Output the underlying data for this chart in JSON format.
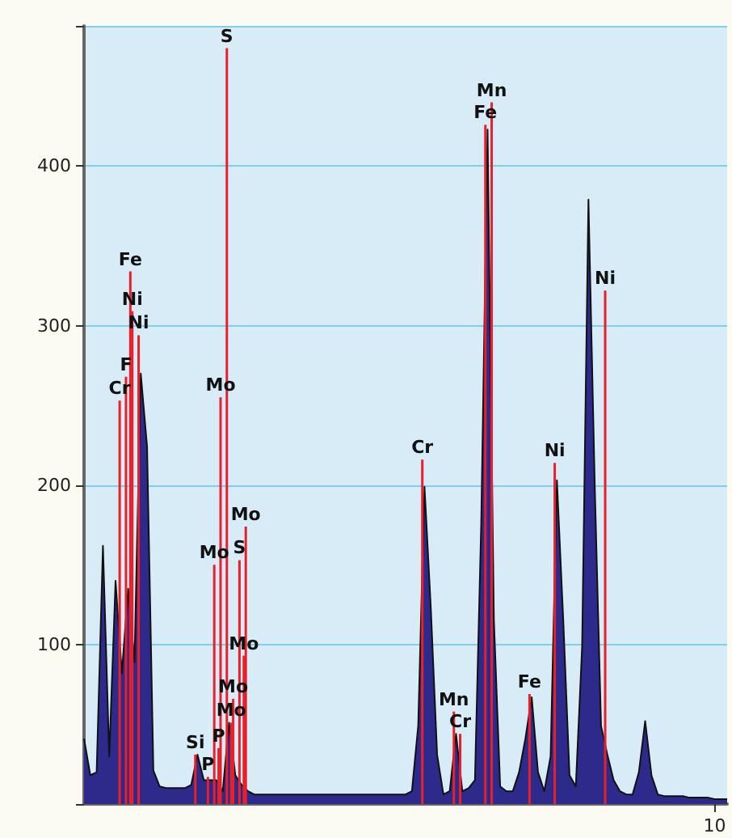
{
  "chart_data": {
    "type": "area",
    "categories": [
      null,
      null,
      null,
      null,
      null,
      null,
      null,
      null,
      null,
      null,
      null,
      null,
      null,
      null,
      null,
      null,
      null,
      null,
      null,
      null,
      null,
      null,
      null,
      null,
      null,
      null,
      null,
      null,
      null,
      null,
      null,
      null,
      null,
      null,
      null,
      null,
      null,
      null,
      null,
      null,
      null,
      null,
      null,
      null,
      null,
      null,
      null,
      null,
      null,
      null,
      null,
      null,
      null,
      null,
      null,
      null,
      null,
      null,
      null,
      null,
      null,
      null,
      null,
      null,
      null,
      null,
      null,
      null,
      null,
      null,
      null,
      null,
      null,
      null,
      null,
      null,
      null,
      null,
      null,
      null,
      null,
      null,
      null,
      null,
      null,
      null,
      null,
      null,
      null,
      null,
      null,
      null,
      null,
      null,
      null,
      null,
      null,
      null,
      null,
      null,
      "10",
      null,
      null
    ],
    "series": [
      {
        "color": "#2e2a8c",
        "values": [
          41,
          18,
          20,
          162,
          30,
          140,
          82,
          135,
          89,
          270,
          224,
          21,
          11,
          10,
          10,
          10,
          10,
          12,
          31,
          15,
          15,
          15,
          8,
          51,
          18,
          12,
          8,
          6,
          6,
          6,
          6,
          6,
          6,
          6,
          6,
          6,
          6,
          6,
          6,
          6,
          6,
          6,
          6,
          6,
          6,
          6,
          6,
          6,
          6,
          6,
          6,
          6,
          8,
          49,
          199,
          123,
          31,
          6,
          8,
          44,
          8,
          10,
          15,
          177,
          423,
          116,
          11,
          8,
          8,
          20,
          41,
          67,
          20,
          8,
          30,
          203,
          116,
          18,
          11,
          99,
          379,
          200,
          49,
          31,
          15,
          8,
          6,
          6,
          20,
          52,
          18,
          6,
          5,
          5,
          5,
          5,
          4,
          4,
          4,
          4,
          3,
          3,
          3
        ]
      },
      {
        "type": "bar",
        "color": "#e8202a",
        "values": [
          null,
          null,
          null,
          null,
          null,
          null,
          253,
          268,
          309,
          294,
          null,
          null,
          null,
          null,
          null,
          null,
          null,
          null,
          31,
          null,
          17,
          150,
          255,
          474,
          66,
          153,
          174,
          null,
          null,
          null,
          null,
          null,
          null,
          null,
          null,
          null,
          null,
          null,
          null,
          null,
          null,
          null,
          null,
          null,
          null,
          null,
          null,
          null,
          null,
          null,
          null,
          null,
          null,
          null,
          216,
          null,
          null,
          null,
          null,
          58,
          44,
          null,
          null,
          null,
          426,
          440,
          null,
          null,
          null,
          null,
          null,
          69,
          null,
          null,
          null,
          214,
          null,
          null,
          null,
          null,
          null,
          null,
          null,
          322,
          null,
          null,
          null,
          null,
          null,
          null,
          null,
          null,
          null,
          null,
          null,
          null,
          null,
          null,
          null,
          null,
          null,
          null,
          null
        ],
        "value_labels": [
          null,
          null,
          null,
          null,
          null,
          null,
          "Cr",
          "F",
          "Ni",
          "Ni",
          null,
          null,
          null,
          null,
          null,
          null,
          null,
          null,
          "Si",
          null,
          "P",
          "Mo",
          "Mo",
          "S",
          "Mo",
          "S",
          "Mo",
          null,
          null,
          null,
          null,
          null,
          null,
          null,
          null,
          null,
          null,
          null,
          null,
          null,
          null,
          null,
          null,
          null,
          null,
          null,
          null,
          null,
          null,
          null,
          null,
          null,
          null,
          null,
          "Cr",
          null,
          null,
          null,
          null,
          "Mn",
          "Cr",
          null,
          null,
          null,
          "Fe",
          "Mn",
          null,
          null,
          null,
          null,
          null,
          "Fe",
          null,
          null,
          null,
          "Ni",
          null,
          null,
          null,
          null,
          null,
          null,
          null,
          "Ni",
          null,
          null,
          null,
          null,
          null,
          null,
          null,
          null,
          null,
          null,
          null,
          null,
          null,
          null,
          null,
          null,
          null,
          null,
          null
        ]
      },
      {
        "type": "bar",
        "color": "#e8202a",
        "values": [
          null,
          null,
          null,
          null,
          null,
          null,
          null,
          334,
          null,
          null,
          null,
          null,
          null,
          null,
          null,
          null,
          null,
          null,
          null,
          null,
          null,
          35,
          null,
          51,
          null,
          93,
          null,
          null,
          null,
          null,
          null,
          null,
          null,
          null,
          null,
          null,
          null,
          null,
          null,
          null,
          null,
          null,
          null,
          null,
          null,
          null,
          null,
          null,
          null,
          null,
          null,
          null,
          null,
          null,
          null,
          null,
          null,
          null,
          null,
          null,
          null,
          null,
          null,
          null,
          null,
          null,
          null,
          null,
          null,
          null,
          null,
          null,
          null,
          null,
          null,
          null,
          null,
          null,
          null,
          null,
          null,
          null,
          null,
          null,
          null,
          null,
          null,
          null,
          null,
          null,
          null,
          null,
          null,
          null,
          null,
          null,
          null,
          null,
          null,
          null,
          null,
          null,
          null
        ],
        "value_labels": [
          null,
          null,
          null,
          null,
          null,
          null,
          null,
          "Fe",
          null,
          null,
          null,
          null,
          null,
          null,
          null,
          null,
          null,
          null,
          null,
          null,
          null,
          "P",
          null,
          "Mo",
          null,
          "Mo",
          null,
          null,
          null,
          null,
          null,
          null,
          null,
          null,
          null,
          null,
          null,
          null,
          null,
          null,
          null,
          null,
          null,
          null,
          null,
          null,
          null,
          null,
          null,
          null,
          null,
          null,
          null,
          null,
          null,
          null,
          null,
          null,
          null,
          null,
          null,
          null,
          null,
          null,
          null,
          null,
          null,
          null,
          null,
          null,
          null,
          null,
          null,
          null,
          null,
          null,
          null,
          null,
          null,
          null,
          null,
          null,
          null,
          null,
          null,
          null,
          null,
          null,
          null,
          null,
          null,
          null,
          null,
          null,
          null,
          null,
          null,
          null,
          null,
          null,
          null,
          null,
          null
        ]
      }
    ],
    "ylim": [
      0,
      488
    ],
    "yticks": [
      100,
      200,
      300,
      400
    ],
    "grid": "y",
    "marker": "none"
  }
}
